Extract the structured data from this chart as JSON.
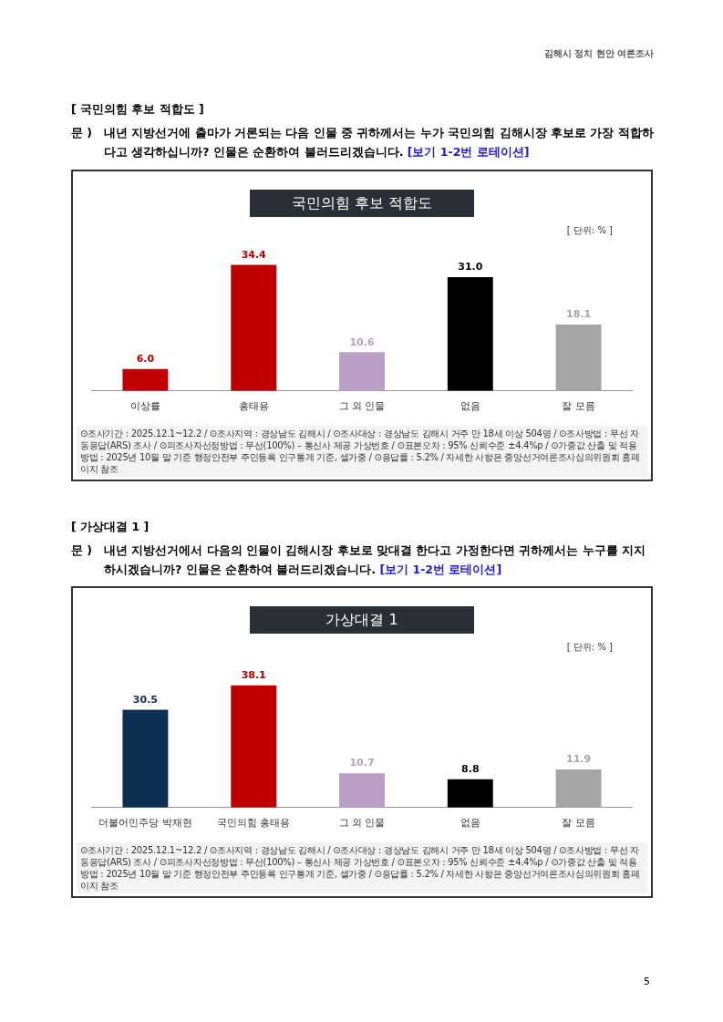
{
  "chart_data": [
    {
      "type": "bar",
      "title": "국민의힘 후보 적합도",
      "categories": [
        "이상률",
        "홍태용",
        "그 외 인물",
        "없음",
        "잘 모름"
      ],
      "values": [
        6.0,
        34.4,
        10.6,
        31.0,
        18.1
      ],
      "colors": [
        "#c00000",
        "#c00000",
        "#b9a0c4",
        "#000000",
        "#a6a6a6"
      ],
      "value_labels": [
        "6.0",
        "34.4",
        "10.6",
        "31.0",
        "18.1"
      ],
      "annotations": [
        "[ 국민의힘 후보 적합도 ]",
        "문 )\t내년 지방선거에 출마가 거론되는 다음 인물 중 귀하께서는 누가 국민의힘 김해시장 후보로 가장 적합하다고 생각하십니까? 인물은 순환하여 불러드리겠습니다.",
        "[보기 1-2번 로테이션]",
        "[ 단위: % ]",
        "⊙조사기간 : 2025.12.1~12.2 / ⊙조사지역 : 경상남도 김해시 / ⊙조사대상 : 경상남도 김해시 거주 만 18세 이상 504명 / ⊙조사방법 : 무선 자동응답(ARS) 조사 / ⊙피조사자선정방법 : 무선(100%) – 통신사 제공 가상번호 / ⊙표본오차 : 95% 신뢰수준 ±4.4%p / ⊙가중값 산출 및 적용방법 : 2025년 10월 말 기준 행정안전부 주민등록 인구통계 기준, 셀가중 / ⊙응답률 : 5.2% / 자세한 사항은 중앙선거여론조사심의위원회 홈페이지 참조",
        "김해시 정치 현안 여론조사",
        "5"
      ]
    },
    {
      "type": "bar",
      "title": "가상대결 1",
      "categories": [
        "더불어민주당 박재현",
        "국민의힘 홍태용",
        "그 외 인물",
        "없음",
        "잘 모름"
      ],
      "values": [
        30.5,
        38.1,
        10.7,
        8.8,
        11.9
      ],
      "colors": [
        "#0c2f52",
        "#c00000",
        "#b9a0c4",
        "#000000",
        "#a6a6a6"
      ],
      "value_labels": [
        "30.5",
        "38.1",
        "10.7",
        "8.8",
        "11.9"
      ],
      "annotations": [
        "[ 가상대결 1 ]",
        "문 )\t내년 지방선거에서 다음의 인물이 김해시장 후보로 맞대결 한다고 가정한다면 귀하께서는 누구를 지지하시겠습니까? 인물은 순환하여 불러드리겠습니다.",
        "[보기 1-2번 로테이션]",
        "[ 단위: % ]",
        "⊙조사기간 : 2025.12.1~12.2 / ⊙조사지역 : 경상남도 김해시 / ⊙조사대상 : 경상남도 김해시 거주 만 18세 이상 504명 / ⊙조사방법 : 무선 자동응답(ARS) 조사 / ⊙피조사자선정방법 : 무선(100%) – 통신사 제공 가상번호 / ⊙표본오차 : 95% 신뢰수준 ±4.4%p / ⊙가중값 산출 및 적용방법 : 2025년 10월 말 기준 행정안전부 주민등록 인구통계 기준, 셀가중 / ⊙응답률 : 5.2% / 자세한 사항은 중앙선거여론조사심의위원회 홈페이지 참조"
      ]
    }
  ]
}
